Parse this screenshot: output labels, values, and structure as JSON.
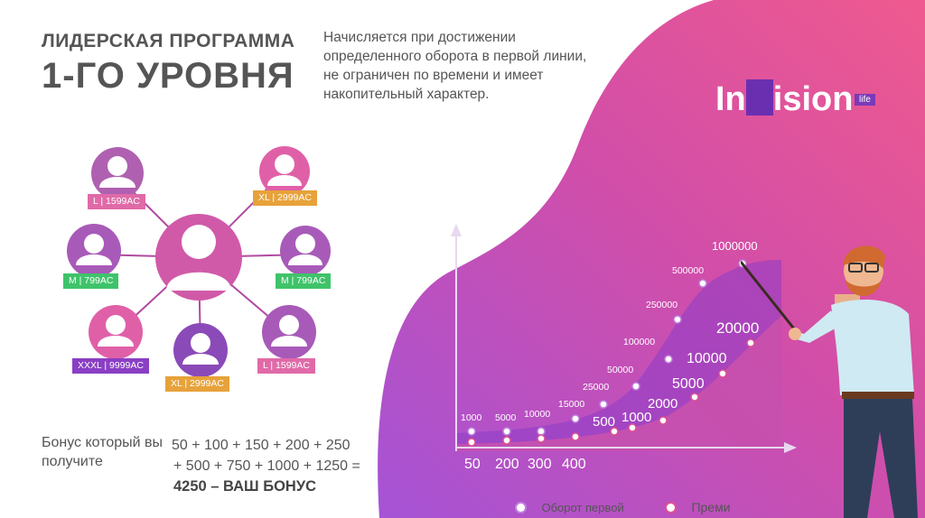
{
  "header": {
    "title_line1": "ЛИДЕРСКАЯ ПРОГРАММА",
    "title_line2": "1-ГО УРОВНЯ",
    "description": "Начисляется при достижении определенного оборота в первой линии, не ограничен по времени и имеет накопительный характер."
  },
  "logo": {
    "text_prefix": "In",
    "text_suffix": "ision",
    "sub": "life"
  },
  "network": {
    "nodes": [
      {
        "label": "L | 1599AC",
        "color": "#e06aa8"
      },
      {
        "label": "XL | 2999AC",
        "color": "#e7a23a"
      },
      {
        "label": "M | 799AC",
        "color": "#3fc36a"
      },
      {
        "label": "M | 799AC",
        "color": "#3fc36a"
      },
      {
        "label": "XXXL | 9999AC",
        "color": "#8a3fc4"
      },
      {
        "label": "XL | 2999AC",
        "color": "#e7a23a"
      },
      {
        "label": "L | 1599AC",
        "color": "#e06aa8"
      }
    ]
  },
  "bonus": {
    "label": "Бонус который вы получите",
    "formula_line1": "50 + 100 + 150 + 200 + 250",
    "formula_line2": "+ 500 + 750 + 1000 + 1250 =",
    "total": "4250 – ВАШ БОНУС"
  },
  "chart_data": {
    "type": "line",
    "series": [
      {
        "name": "Оборот первой",
        "labels": [
          "1000",
          "5000",
          "10000",
          "15000",
          "25000",
          "50000",
          "100000",
          "250000",
          "500000",
          "1000000"
        ],
        "color": "#ffffff"
      },
      {
        "name": "Преми",
        "labels": [
          "50",
          "200",
          "300",
          "400",
          "500",
          "1000",
          "2000",
          "5000",
          "10000",
          "20000"
        ],
        "color": "#ffffff"
      }
    ],
    "legend": [
      "Оборот первой",
      "Преми"
    ],
    "bottom_labels": [
      "50",
      "200",
      "300",
      "400"
    ]
  }
}
